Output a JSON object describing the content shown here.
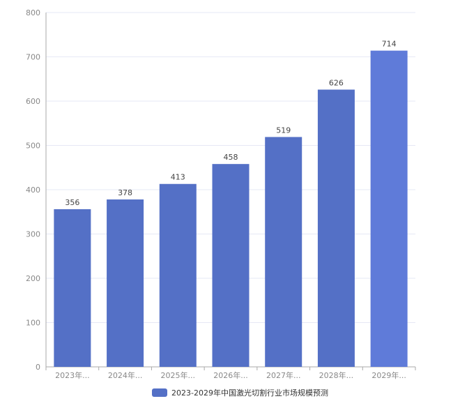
{
  "chart_data": {
    "type": "bar",
    "categories": [
      "2023年...",
      "2024年...",
      "2025年...",
      "2026年...",
      "2027年...",
      "2028年...",
      "2029年..."
    ],
    "series": [
      {
        "name": "2023-2029年中国激光切割行业市场规模预测",
        "values": [
          356,
          378,
          413,
          458,
          519,
          626,
          714
        ]
      }
    ],
    "ylim": [
      0,
      800
    ],
    "yticks": [
      0,
      100,
      200,
      300,
      400,
      500,
      600,
      700,
      800
    ],
    "grid": true,
    "legend_position": "bottom-center",
    "colors": {
      "bar": "#5470c6",
      "bar_highlight": "#5f7bd9",
      "grid": "#e6e8f5",
      "axis": "#aaaaaa"
    }
  }
}
